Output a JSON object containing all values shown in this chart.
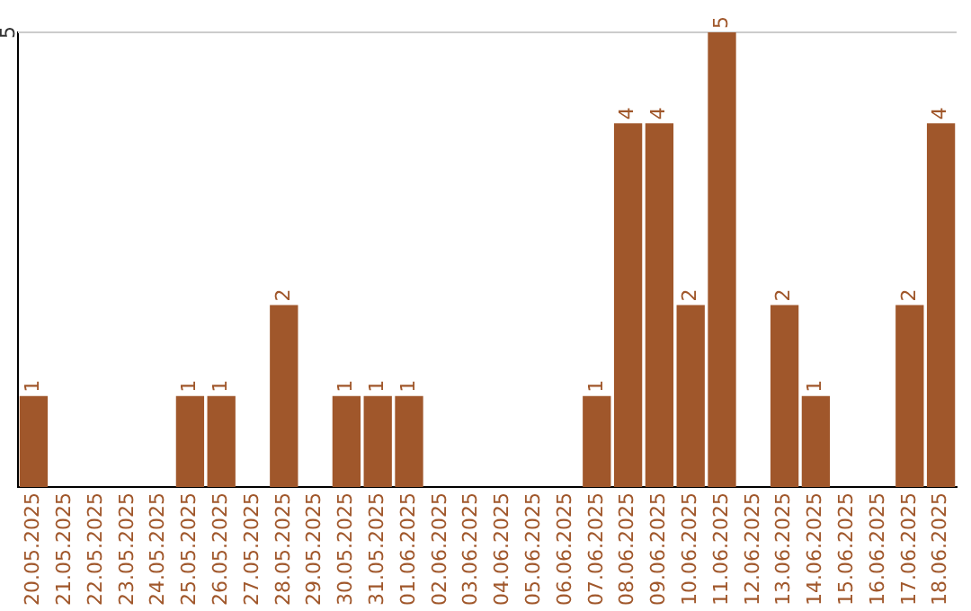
{
  "chart_data": {
    "type": "bar",
    "categories": [
      "20.05.2025",
      "21.05.2025",
      "22.05.2025",
      "23.05.2025",
      "24.05.2025",
      "25.05.2025",
      "26.05.2025",
      "27.05.2025",
      "28.05.2025",
      "29.05.2025",
      "30.05.2025",
      "31.05.2025",
      "01.06.2025",
      "02.06.2025",
      "03.06.2025",
      "04.06.2025",
      "05.06.2025",
      "06.06.2025",
      "07.06.2025",
      "08.06.2025",
      "09.06.2025",
      "10.06.2025",
      "11.06.2025",
      "12.06.2025",
      "13.06.2025",
      "14.06.2025",
      "15.06.2025",
      "16.06.2025",
      "17.06.2025",
      "18.06.2025"
    ],
    "values": [
      1,
      0,
      0,
      0,
      0,
      1,
      1,
      0,
      2,
      0,
      1,
      1,
      1,
      0,
      0,
      0,
      0,
      0,
      1,
      4,
      4,
      2,
      5,
      0,
      2,
      1,
      0,
      0,
      2,
      4
    ],
    "value_labels": [
      "1",
      null,
      null,
      null,
      null,
      "1",
      "1",
      null,
      "2",
      null,
      "1",
      "1",
      "1",
      null,
      null,
      null,
      null,
      null,
      "1",
      "4",
      "4",
      "2",
      "5",
      null,
      "2",
      "1",
      null,
      null,
      "2",
      "4"
    ],
    "color": "#a0572b",
    "ylim": [
      0,
      5
    ],
    "yticks": [
      5
    ],
    "ref_lines": [
      {
        "axis": "y",
        "value": 5,
        "color": "#cccccc"
      }
    ],
    "legend": false
  }
}
